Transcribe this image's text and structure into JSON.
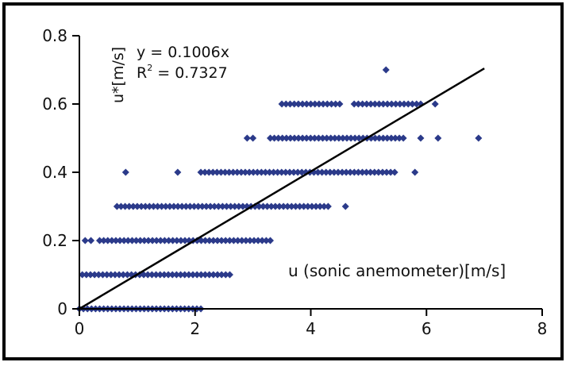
{
  "chart_data": {
    "type": "scatter",
    "title": "",
    "xlabel": "u (sonic anemometer)[m/s]",
    "ylabel": "u*[m/s]",
    "xlim": [
      0,
      8
    ],
    "ylim": [
      0,
      0.8
    ],
    "x_ticks": [
      "0",
      "2",
      "4",
      "6",
      "8"
    ],
    "y_ticks": [
      "0",
      "0.2",
      "0.4",
      "0.6",
      "0.8"
    ],
    "grid": false,
    "legend": "none",
    "annotations": {
      "equation": "y = 0.1006x",
      "r2_prefix": "R",
      "r2_sup": "2",
      "r2_value": " = 0.7327"
    },
    "trendline": {
      "slope": 0.1006,
      "x_range": [
        0,
        7
      ]
    },
    "marker_color": "#2b3a8a",
    "line_color": "#000000",
    "series": [
      {
        "bands": [
          {
            "y": 0.0,
            "x_ranges": [
              [
                0.0,
                2.1
              ]
            ]
          },
          {
            "y": 0.1,
            "x_ranges": [
              [
                0.05,
                2.6
              ]
            ]
          },
          {
            "y": 0.2,
            "x_ranges": [
              [
                0.1,
                0.2
              ],
              [
                0.35,
                3.3
              ]
            ]
          },
          {
            "y": 0.3,
            "x_ranges": [
              [
                0.65,
                4.3
              ],
              [
                4.6,
                4.6
              ]
            ]
          },
          {
            "y": 0.4,
            "x_ranges": [
              [
                0.8,
                0.8
              ],
              [
                1.7,
                1.7
              ],
              [
                2.1,
                5.45
              ],
              [
                5.8,
                5.8
              ]
            ]
          },
          {
            "y": 0.5,
            "x_ranges": [
              [
                2.9,
                3.0
              ],
              [
                3.3,
                5.6
              ],
              [
                5.9,
                5.9
              ],
              [
                6.2,
                6.2
              ],
              [
                6.9,
                6.9
              ]
            ]
          },
          {
            "y": 0.6,
            "x_ranges": [
              [
                3.5,
                4.5
              ],
              [
                4.75,
                5.9
              ],
              [
                6.15,
                6.15
              ]
            ]
          },
          {
            "y": 0.7,
            "x_ranges": [
              [
                5.3,
                5.3
              ]
            ]
          }
        ]
      }
    ]
  }
}
